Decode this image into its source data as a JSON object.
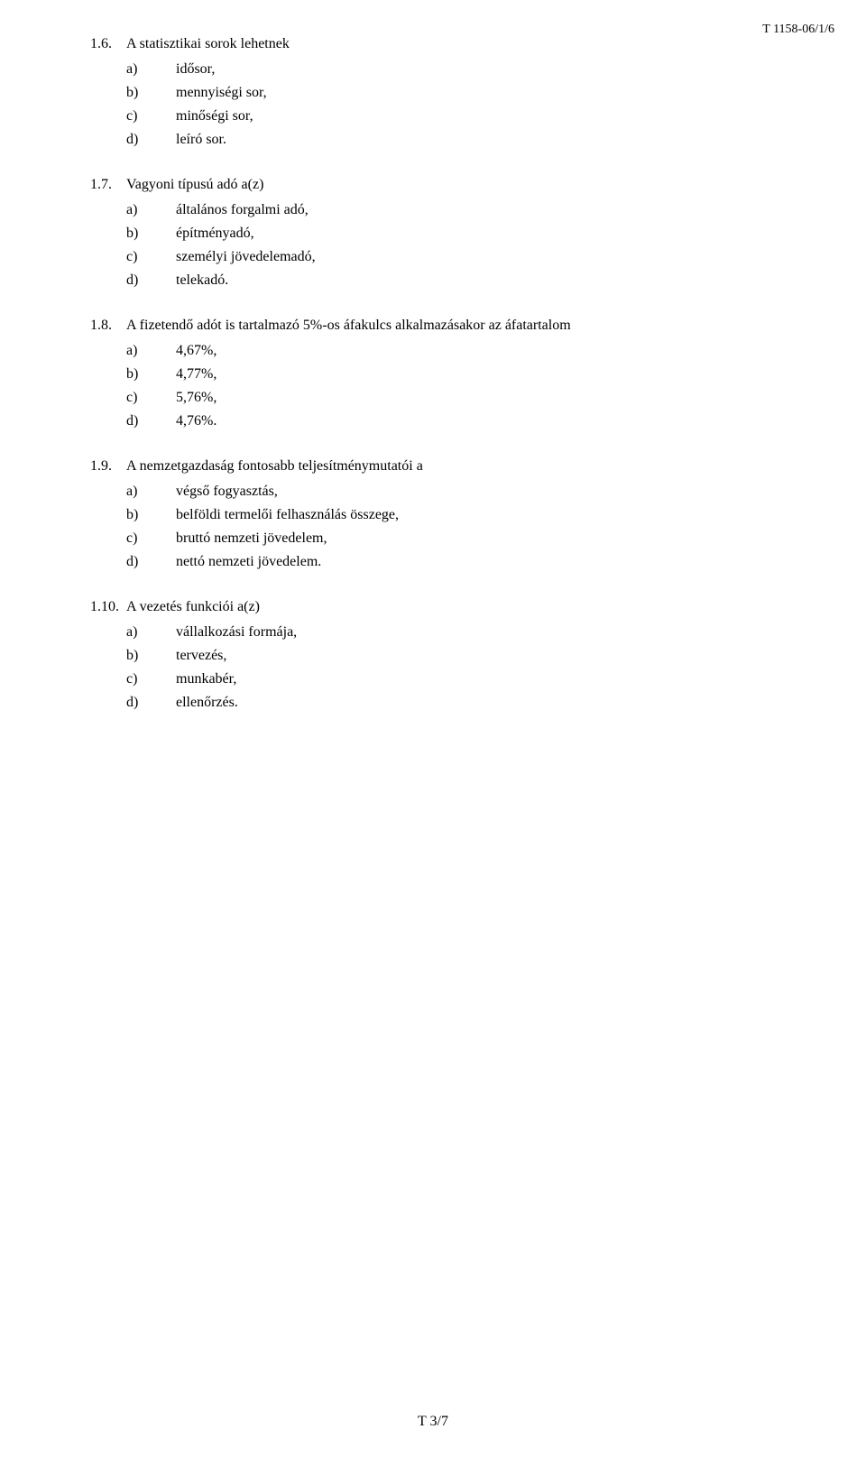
{
  "header": {
    "code": "T 1158-06/1/6"
  },
  "questions": [
    {
      "number": "1.6.",
      "text": "A statisztikai sorok lehetnek",
      "options": [
        {
          "label": "a)",
          "text": "idősor,"
        },
        {
          "label": "b)",
          "text": "mennyiségi sor,"
        },
        {
          "label": "c)",
          "text": "minőségi sor,"
        },
        {
          "label": "d)",
          "text": "leíró sor."
        }
      ]
    },
    {
      "number": "1.7.",
      "text": "Vagyoni típusú adó a(z)",
      "options": [
        {
          "label": "a)",
          "text": "általános forgalmi adó,"
        },
        {
          "label": "b)",
          "text": "építményadó,"
        },
        {
          "label": "c)",
          "text": "személyi jövedelemadó,"
        },
        {
          "label": "d)",
          "text": "telekadó."
        }
      ]
    },
    {
      "number": "1.8.",
      "text": "A fizetendő adót is tartalmazó 5%-os áfakulcs alkalmazásakor az áfatartalom",
      "options": [
        {
          "label": "a)",
          "text": "4,67%,"
        },
        {
          "label": "b)",
          "text": "4,77%,"
        },
        {
          "label": "c)",
          "text": "5,76%,"
        },
        {
          "label": "d)",
          "text": "4,76%."
        }
      ]
    },
    {
      "number": "1.9.",
      "text": "A nemzetgazdaság fontosabb teljesítménymutatói a",
      "options": [
        {
          "label": "a)",
          "text": "végső fogyasztás,"
        },
        {
          "label": "b)",
          "text": "belföldi termelői felhasználás összege,"
        },
        {
          "label": "c)",
          "text": "bruttó nemzeti jövedelem,"
        },
        {
          "label": "d)",
          "text": "nettó nemzeti jövedelem."
        }
      ]
    },
    {
      "number": "1.10.",
      "text": "A vezetés funkciói a(z)",
      "options": [
        {
          "label": "a)",
          "text": "vállalkozási formája,"
        },
        {
          "label": "b)",
          "text": "tervezés,"
        },
        {
          "label": "c)",
          "text": "munkabér,"
        },
        {
          "label": "d)",
          "text": "ellenőrzés."
        }
      ]
    }
  ],
  "footer": {
    "page": "T 3/7"
  }
}
